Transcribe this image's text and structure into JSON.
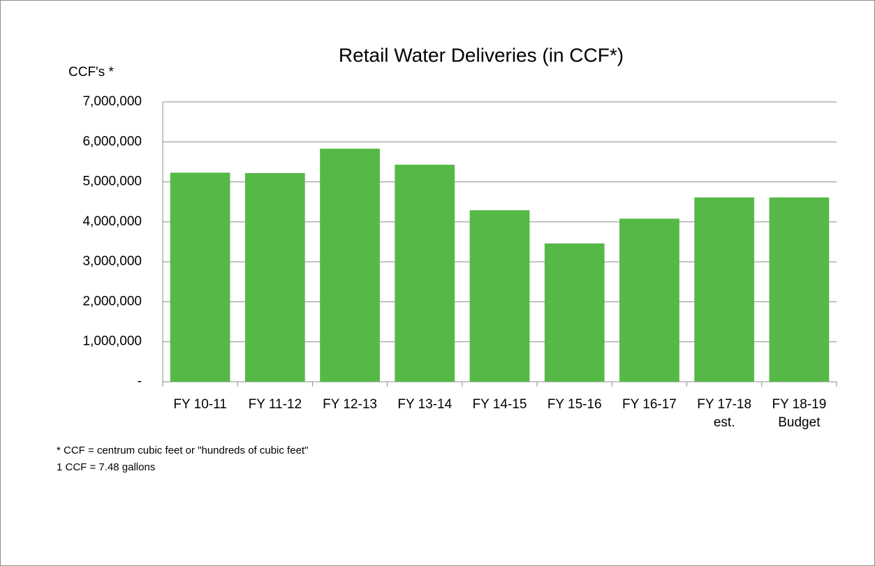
{
  "chart_data": {
    "type": "bar",
    "title": "Retail Water Deliveries (in CCF*)",
    "y_label": "CCF's *",
    "categories": [
      "FY 10-11",
      "FY 11-12",
      "FY 12-13",
      "FY 13-14",
      "FY 14-15",
      "FY 15-16",
      "FY 16-17",
      "FY 17-18 est.",
      "FY 18-19 Budget"
    ],
    "values": [
      5230000,
      5220000,
      5830000,
      5430000,
      4290000,
      3460000,
      4080000,
      4610000,
      4610000
    ],
    "color": "#56b947",
    "ylim": [
      0,
      7000000
    ],
    "yticks": [
      {
        "value": 0,
        "label": "-"
      },
      {
        "value": 1000000,
        "label": "1,000,000"
      },
      {
        "value": 2000000,
        "label": "2,000,000"
      },
      {
        "value": 3000000,
        "label": "3,000,000"
      },
      {
        "value": 4000000,
        "label": "4,000,000"
      },
      {
        "value": 5000000,
        "label": "5,000,000"
      },
      {
        "value": 6000000,
        "label": "6,000,000"
      },
      {
        "value": 7000000,
        "label": "7,000,000"
      }
    ],
    "grid": true,
    "notes": [
      "* CCF = centrum cubic feet or \"hundreds of cubic feet\"",
      "1 CCF = 7.48 gallons"
    ]
  }
}
